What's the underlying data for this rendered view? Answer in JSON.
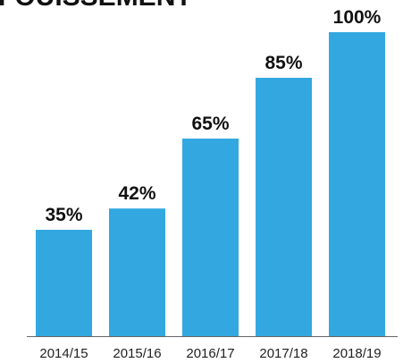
{
  "chart_data": {
    "type": "bar",
    "title": "FOUISSEMENT",
    "categories": [
      "2014/15",
      "2015/16",
      "2016/17",
      "2017/18",
      "2018/19"
    ],
    "values": [
      35,
      42,
      65,
      85,
      100
    ],
    "value_labels": [
      "35%",
      "42%",
      "65%",
      "85%",
      "100%"
    ],
    "color": "#33a8e0"
  }
}
